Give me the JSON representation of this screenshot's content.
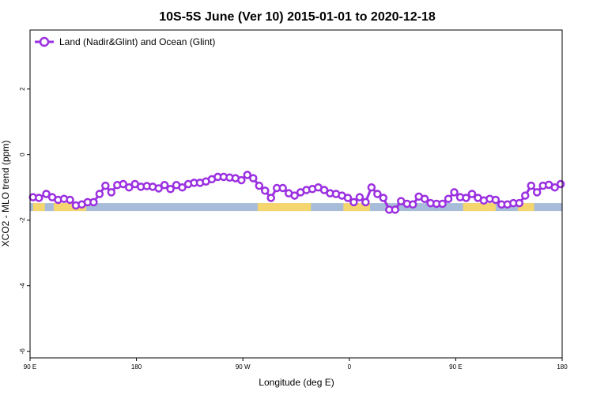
{
  "chart_data": {
    "type": "line",
    "title": "10S-5S June (Ver 10)   2015-01-01 to 2020-12-18",
    "xlabel": "Longitude (deg E)",
    "ylabel": "XCO2 - MLO trend (ppm)",
    "xlim": [
      90,
      450
    ],
    "ylim": [
      -6.2,
      3.8
    ],
    "grid": false,
    "legend_position": "top-left",
    "x_ticks": [
      {
        "value": 90,
        "label": "90 E"
      },
      {
        "value": 162,
        "label": "180"
      },
      {
        "value": 234,
        "label": "90 W"
      },
      {
        "value": 306,
        "label": "0"
      },
      {
        "value": 378,
        "label": "90 E"
      },
      {
        "value": 450,
        "label": "180"
      }
    ],
    "y_ticks": [
      {
        "value": 2,
        "label": "2"
      },
      {
        "value": 0,
        "label": "0"
      },
      {
        "value": -2,
        "label": "-2"
      },
      {
        "value": -4,
        "label": "-4"
      },
      {
        "value": -6,
        "label": "-6"
      }
    ],
    "series": [
      {
        "name": "Land (Nadir&Glint) and Ocean (Glint)",
        "color": "#9b30e0",
        "x": [
          92,
          96,
          101,
          105,
          109,
          113,
          117,
          121,
          125,
          129,
          133,
          137,
          141,
          145,
          149,
          153,
          157,
          161,
          165,
          169,
          173,
          177,
          181,
          185,
          189,
          193,
          197,
          201,
          205,
          209,
          213,
          217,
          221,
          225,
          229,
          233,
          237,
          241,
          245,
          249,
          253,
          257,
          261,
          265,
          269,
          273,
          277,
          281,
          285,
          289,
          293,
          297,
          301,
          305,
          309,
          313,
          317,
          321,
          325,
          329,
          333,
          337,
          341,
          345,
          349,
          353,
          357,
          361,
          365,
          369,
          373,
          377,
          381,
          385,
          389,
          393,
          397,
          401,
          405,
          409,
          413,
          417,
          421,
          425,
          429,
          433,
          437,
          441,
          445,
          449
        ],
        "y": [
          -1.3,
          -1.32,
          -1.2,
          -1.3,
          -1.38,
          -1.35,
          -1.38,
          -1.55,
          -1.52,
          -1.45,
          -1.45,
          -1.2,
          -0.95,
          -1.15,
          -0.93,
          -0.9,
          -1.0,
          -0.9,
          -0.98,
          -0.96,
          -0.98,
          -1.03,
          -0.93,
          -1.05,
          -0.93,
          -1.0,
          -0.9,
          -0.86,
          -0.86,
          -0.82,
          -0.75,
          -0.68,
          -0.68,
          -0.7,
          -0.72,
          -0.78,
          -0.62,
          -0.72,
          -0.95,
          -1.1,
          -1.32,
          -1.02,
          -1.02,
          -1.18,
          -1.25,
          -1.15,
          -1.08,
          -1.05,
          -1.0,
          -1.08,
          -1.18,
          -1.2,
          -1.25,
          -1.32,
          -1.45,
          -1.3,
          -1.45,
          -1.0,
          -1.2,
          -1.32,
          -1.68,
          -1.68,
          -1.42,
          -1.5,
          -1.52,
          -1.28,
          -1.35,
          -1.48,
          -1.5,
          -1.5,
          -1.35,
          -1.15,
          -1.3,
          -1.32,
          -1.2,
          -1.32,
          -1.4,
          -1.35,
          -1.38,
          -1.52,
          -1.52,
          -1.48,
          -1.48,
          -1.25,
          -0.95,
          -1.15,
          -0.95,
          -0.92,
          -1.0,
          -0.9
        ]
      }
    ],
    "map_band": {
      "y_center": -1.6,
      "ocean_color": "#a6bcd8",
      "land_color": "#f5d66e",
      "land_ranges": [
        [
          92,
          100
        ],
        [
          106,
          128
        ],
        [
          244,
          280
        ],
        [
          302,
          320
        ],
        [
          383,
          405
        ],
        [
          420,
          431
        ]
      ]
    }
  }
}
